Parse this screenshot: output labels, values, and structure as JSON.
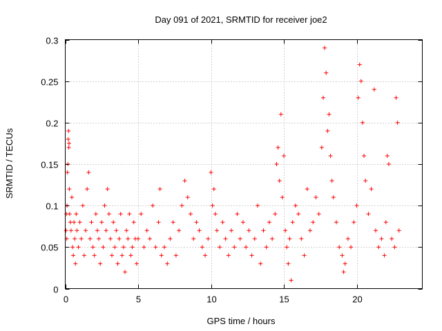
{
  "chart_data": {
    "type": "scatter",
    "title": "Day 091 of 2021, SRMTID for receiver joe2",
    "xlabel": "GPS time / hours",
    "ylabel": "SRMTID / TECUs",
    "xlim": [
      0,
      24.5
    ],
    "ylim": [
      0,
      0.3
    ],
    "xticks": [
      0,
      5,
      10,
      15,
      20
    ],
    "yticks": [
      0,
      0.05,
      0.1,
      0.15,
      0.2,
      0.25,
      0.3
    ],
    "xtick_labels": [
      "0",
      "5",
      "10",
      "15",
      "20"
    ],
    "ytick_labels": [
      "0",
      "0.05",
      "0.1",
      "0.15",
      "0.2",
      "0.25",
      "0.3"
    ],
    "grid": true,
    "marker": "+",
    "series": [
      {
        "name": "SRMTID",
        "color": "#ff0000",
        "points": [
          [
            0.05,
            0.07
          ],
          [
            0.08,
            0.09
          ],
          [
            0.1,
            0.06
          ],
          [
            0.12,
            0.1
          ],
          [
            0.15,
            0.14
          ],
          [
            0.18,
            0.15
          ],
          [
            0.2,
            0.18
          ],
          [
            0.22,
            0.19
          ],
          [
            0.24,
            0.17
          ],
          [
            0.26,
            0.175
          ],
          [
            0.28,
            0.12
          ],
          [
            0.3,
            0.09
          ],
          [
            0.35,
            0.08
          ],
          [
            0.4,
            0.07
          ],
          [
            0.45,
            0.11
          ],
          [
            0.5,
            0.05
          ],
          [
            0.55,
            0.04
          ],
          [
            0.6,
            0.08
          ],
          [
            0.65,
            0.06
          ],
          [
            0.7,
            0.03
          ],
          [
            0.75,
            0.09
          ],
          [
            0.8,
            0.07
          ],
          [
            0.9,
            0.05
          ],
          [
            1.0,
            0.08
          ],
          [
            1.1,
            0.06
          ],
          [
            1.2,
            0.1
          ],
          [
            1.3,
            0.04
          ],
          [
            1.4,
            0.07
          ],
          [
            1.5,
            0.12
          ],
          [
            1.6,
            0.14
          ],
          [
            1.7,
            0.06
          ],
          [
            1.8,
            0.08
          ],
          [
            1.9,
            0.05
          ],
          [
            2.0,
            0.04
          ],
          [
            2.1,
            0.09
          ],
          [
            2.2,
            0.07
          ],
          [
            2.3,
            0.06
          ],
          [
            2.4,
            0.03
          ],
          [
            2.5,
            0.08
          ],
          [
            2.6,
            0.05
          ],
          [
            2.7,
            0.1
          ],
          [
            2.8,
            0.07
          ],
          [
            2.9,
            0.12
          ],
          [
            3.0,
            0.09
          ],
          [
            3.1,
            0.06
          ],
          [
            3.2,
            0.04
          ],
          [
            3.3,
            0.08
          ],
          [
            3.4,
            0.05
          ],
          [
            3.5,
            0.07
          ],
          [
            3.6,
            0.03
          ],
          [
            3.7,
            0.06
          ],
          [
            3.8,
            0.09
          ],
          [
            3.9,
            0.04
          ],
          [
            4.0,
            0.05
          ],
          [
            4.1,
            0.02
          ],
          [
            4.2,
            0.07
          ],
          [
            4.3,
            0.06
          ],
          [
            4.4,
            0.09
          ],
          [
            4.5,
            0.04
          ],
          [
            4.6,
            0.05
          ],
          [
            4.7,
            0.08
          ],
          [
            4.8,
            0.06
          ],
          [
            4.9,
            0.03
          ],
          [
            5.0,
            0.06
          ],
          [
            5.2,
            0.09
          ],
          [
            5.4,
            0.05
          ],
          [
            5.6,
            0.07
          ],
          [
            5.8,
            0.06
          ],
          [
            6.0,
            0.1
          ],
          [
            6.2,
            0.05
          ],
          [
            6.4,
            0.08
          ],
          [
            6.5,
            0.12
          ],
          [
            6.6,
            0.04
          ],
          [
            6.8,
            0.05
          ],
          [
            7.0,
            0.03
          ],
          [
            7.2,
            0.06
          ],
          [
            7.4,
            0.08
          ],
          [
            7.6,
            0.04
          ],
          [
            7.8,
            0.07
          ],
          [
            8.0,
            0.1
          ],
          [
            8.2,
            0.13
          ],
          [
            8.4,
            0.11
          ],
          [
            8.6,
            0.09
          ],
          [
            8.8,
            0.06
          ],
          [
            9.0,
            0.08
          ],
          [
            9.2,
            0.07
          ],
          [
            9.4,
            0.05
          ],
          [
            9.6,
            0.04
          ],
          [
            9.8,
            0.06
          ],
          [
            10.0,
            0.14
          ],
          [
            10.1,
            0.1
          ],
          [
            10.2,
            0.12
          ],
          [
            10.3,
            0.09
          ],
          [
            10.4,
            0.07
          ],
          [
            10.6,
            0.05
          ],
          [
            10.8,
            0.08
          ],
          [
            11.0,
            0.06
          ],
          [
            11.2,
            0.04
          ],
          [
            11.4,
            0.07
          ],
          [
            11.6,
            0.05
          ],
          [
            11.8,
            0.09
          ],
          [
            12.0,
            0.06
          ],
          [
            12.2,
            0.08
          ],
          [
            12.4,
            0.05
          ],
          [
            12.6,
            0.07
          ],
          [
            12.8,
            0.04
          ],
          [
            13.0,
            0.06
          ],
          [
            13.2,
            0.1
          ],
          [
            13.4,
            0.03
          ],
          [
            13.6,
            0.07
          ],
          [
            13.8,
            0.05
          ],
          [
            14.0,
            0.08
          ],
          [
            14.2,
            0.06
          ],
          [
            14.4,
            0.09
          ],
          [
            14.5,
            0.15
          ],
          [
            14.6,
            0.17
          ],
          [
            14.7,
            0.13
          ],
          [
            14.8,
            0.21
          ],
          [
            14.9,
            0.11
          ],
          [
            15.0,
            0.16
          ],
          [
            15.1,
            0.07
          ],
          [
            15.2,
            0.05
          ],
          [
            15.3,
            0.03
          ],
          [
            15.4,
            0.06
          ],
          [
            15.5,
            0.01
          ],
          [
            15.6,
            0.08
          ],
          [
            15.8,
            0.1
          ],
          [
            16.0,
            0.09
          ],
          [
            16.2,
            0.06
          ],
          [
            16.4,
            0.04
          ],
          [
            16.6,
            0.12
          ],
          [
            16.8,
            0.07
          ],
          [
            17.0,
            0.08
          ],
          [
            17.2,
            0.11
          ],
          [
            17.4,
            0.09
          ],
          [
            17.6,
            0.17
          ],
          [
            17.7,
            0.23
          ],
          [
            17.8,
            0.29
          ],
          [
            17.9,
            0.26
          ],
          [
            18.0,
            0.19
          ],
          [
            18.1,
            0.21
          ],
          [
            18.2,
            0.16
          ],
          [
            18.3,
            0.13
          ],
          [
            18.4,
            0.11
          ],
          [
            18.6,
            0.08
          ],
          [
            18.8,
            0.05
          ],
          [
            19.0,
            0.04
          ],
          [
            19.1,
            0.02
          ],
          [
            19.2,
            0.03
          ],
          [
            19.4,
            0.06
          ],
          [
            19.6,
            0.05
          ],
          [
            19.8,
            0.08
          ],
          [
            20.0,
            0.1
          ],
          [
            20.1,
            0.23
          ],
          [
            20.2,
            0.27
          ],
          [
            20.3,
            0.25
          ],
          [
            20.4,
            0.2
          ],
          [
            20.5,
            0.16
          ],
          [
            20.6,
            0.13
          ],
          [
            20.8,
            0.09
          ],
          [
            21.0,
            0.12
          ],
          [
            21.2,
            0.24
          ],
          [
            21.3,
            0.07
          ],
          [
            21.5,
            0.05
          ],
          [
            21.7,
            0.06
          ],
          [
            21.9,
            0.04
          ],
          [
            22.0,
            0.08
          ],
          [
            22.1,
            0.16
          ],
          [
            22.2,
            0.15
          ],
          [
            22.4,
            0.06
          ],
          [
            22.6,
            0.05
          ],
          [
            22.7,
            0.23
          ],
          [
            22.8,
            0.2
          ],
          [
            22.9,
            0.07
          ]
        ]
      }
    ]
  }
}
